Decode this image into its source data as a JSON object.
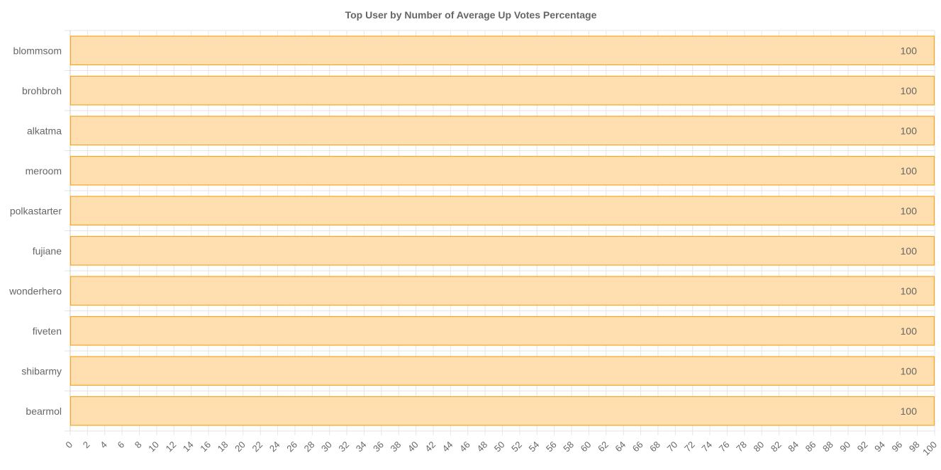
{
  "chart_data": {
    "type": "bar",
    "orientation": "horizontal",
    "title": "Top User by Number of Average Up Votes Percentage",
    "categories": [
      "blommsom",
      "brohbroh",
      "alkatma",
      "meroom",
      "polkastarter",
      "fujiane",
      "wonderhero",
      "fiveten",
      "shibarmy",
      "bearmol"
    ],
    "values": [
      100,
      100,
      100,
      100,
      100,
      100,
      100,
      100,
      100,
      100
    ],
    "xlim": [
      0,
      100
    ],
    "x_tick_step": 2,
    "grid": true,
    "legend": "none",
    "colors": {
      "bar_fill": "#ffdfb0",
      "bar_stroke": "#f5a623",
      "grid": "#e6e6e6",
      "text": "#666666"
    }
  }
}
